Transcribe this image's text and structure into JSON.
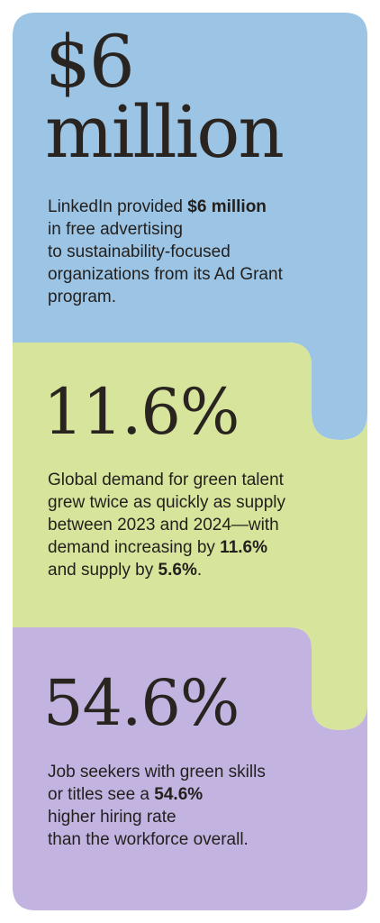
{
  "colors": {
    "blue_panel": "#9cc4e4",
    "green_panel": "#d6e59b",
    "purple_panel": "#c2b3e1",
    "text": "#231f1c"
  },
  "stat1": {
    "headline_line1": "$6",
    "headline_line2": "million",
    "text_a": "LinkedIn provided ",
    "text_bold": "$6 million",
    "line2": "in free advertising",
    "line3": "to sustainability-focused",
    "line4": "organizations from its Ad Grant",
    "line5": "program."
  },
  "stat2": {
    "headline": "11.6%",
    "line1": "Global demand for green talent",
    "line2": "grew twice as quickly as supply",
    "line3": "between 2023 and 2024—with",
    "line4_a": "demand increasing by ",
    "line4_bold": "11.6%",
    "line5_a": "and supply by ",
    "line5_bold": "5.6%",
    "line5_c": "."
  },
  "stat3": {
    "headline": "54.6%",
    "line1": "Job seekers with green skills",
    "line2_a": "or titles see a ",
    "line2_bold": "54.6%",
    "line3": "higher hiring rate",
    "line4": "than the workforce overall."
  }
}
